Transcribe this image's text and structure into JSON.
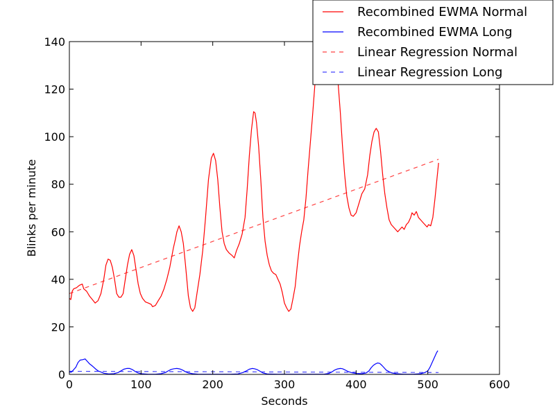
{
  "chart_data": {
    "type": "line",
    "title": "",
    "xlabel": "Seconds",
    "ylabel": "Blinks per minute",
    "xlim": [
      0,
      600
    ],
    "ylim": [
      0,
      140
    ],
    "xticks": [
      "0",
      "100",
      "200",
      "300",
      "400",
      "500",
      "600"
    ],
    "yticks": [
      "0",
      "20",
      "40",
      "60",
      "80",
      "100",
      "120",
      "140"
    ],
    "grid": false,
    "legend_position": "top-right",
    "series": [
      {
        "name": "Recombined EWMA Normal",
        "color": "#ff0000",
        "style": "solid",
        "points": [
          [
            0,
            32
          ],
          [
            2,
            31.5
          ],
          [
            4,
            35
          ],
          [
            6,
            36
          ],
          [
            10,
            36.5
          ],
          [
            14,
            37.5
          ],
          [
            18,
            38
          ],
          [
            20,
            36
          ],
          [
            24,
            35
          ],
          [
            28,
            33
          ],
          [
            32,
            31.5
          ],
          [
            36,
            30
          ],
          [
            40,
            31
          ],
          [
            44,
            34
          ],
          [
            48,
            40
          ],
          [
            51,
            46
          ],
          [
            54,
            48.5
          ],
          [
            57,
            48
          ],
          [
            60,
            45
          ],
          [
            63,
            40
          ],
          [
            66,
            34
          ],
          [
            69,
            32.5
          ],
          [
            72,
            32.5
          ],
          [
            75,
            34
          ],
          [
            78,
            40
          ],
          [
            81,
            46
          ],
          [
            84,
            50.5
          ],
          [
            87,
            52.5
          ],
          [
            90,
            50
          ],
          [
            93,
            44
          ],
          [
            96,
            38
          ],
          [
            99,
            34
          ],
          [
            102,
            32
          ],
          [
            106,
            30.5
          ],
          [
            110,
            30
          ],
          [
            114,
            29.5
          ],
          [
            116,
            28.5
          ],
          [
            120,
            29
          ],
          [
            124,
            31
          ],
          [
            128,
            33
          ],
          [
            132,
            36
          ],
          [
            136,
            40
          ],
          [
            140,
            45
          ],
          [
            145,
            53
          ],
          [
            148,
            57
          ],
          [
            150,
            60
          ],
          [
            153,
            62.5
          ],
          [
            156,
            60
          ],
          [
            159,
            55
          ],
          [
            162,
            46
          ],
          [
            166,
            33
          ],
          [
            169,
            28
          ],
          [
            172,
            26.5
          ],
          [
            175,
            28
          ],
          [
            178,
            34
          ],
          [
            182,
            42
          ],
          [
            186,
            52
          ],
          [
            190,
            66
          ],
          [
            194,
            82
          ],
          [
            198,
            91
          ],
          [
            201,
            93
          ],
          [
            204,
            90
          ],
          [
            207,
            82
          ],
          [
            210,
            70
          ],
          [
            213,
            60
          ],
          [
            216,
            55
          ],
          [
            219,
            52.5
          ],
          [
            223,
            51
          ],
          [
            227,
            50
          ],
          [
            230,
            49
          ],
          [
            233,
            52
          ],
          [
            237,
            55
          ],
          [
            241,
            59
          ],
          [
            245,
            66
          ],
          [
            248,
            78
          ],
          [
            251,
            92
          ],
          [
            254,
            103
          ],
          [
            257,
            110.5
          ],
          [
            259,
            110
          ],
          [
            261,
            106
          ],
          [
            264,
            96
          ],
          [
            267,
            82
          ],
          [
            270,
            66
          ],
          [
            273,
            56
          ],
          [
            276,
            50
          ],
          [
            279,
            46
          ],
          [
            282,
            43.5
          ],
          [
            285,
            42.5
          ],
          [
            288,
            42
          ],
          [
            291,
            40
          ],
          [
            294,
            38
          ],
          [
            297,
            34.5
          ],
          [
            300,
            30
          ],
          [
            303,
            28
          ],
          [
            306,
            26.5
          ],
          [
            309,
            27.5
          ],
          [
            312,
            32
          ],
          [
            315,
            37
          ],
          [
            318,
            46
          ],
          [
            321,
            54
          ],
          [
            324,
            60
          ],
          [
            327,
            65
          ],
          [
            330,
            74
          ],
          [
            333,
            86
          ],
          [
            336,
            97
          ],
          [
            339,
            108
          ],
          [
            342,
            120
          ],
          [
            345,
            132
          ],
          [
            348,
            140
          ],
          [
            352,
            145
          ],
          [
            356,
            146
          ],
          [
            360,
            144
          ],
          [
            364,
            140
          ],
          [
            368,
            134
          ],
          [
            372,
            128
          ],
          [
            375,
            122
          ],
          [
            378,
            110
          ],
          [
            381,
            96
          ],
          [
            384,
            84
          ],
          [
            387,
            75
          ],
          [
            390,
            70
          ],
          [
            393,
            67
          ],
          [
            396,
            66.5
          ],
          [
            400,
            68
          ],
          [
            404,
            72
          ],
          [
            408,
            76
          ],
          [
            412,
            78
          ],
          [
            416,
            84
          ],
          [
            419,
            92
          ],
          [
            422,
            98
          ],
          [
            425,
            102
          ],
          [
            428,
            103.5
          ],
          [
            431,
            102
          ],
          [
            434,
            94
          ],
          [
            437,
            84
          ],
          [
            440,
            76
          ],
          [
            443,
            70
          ],
          [
            446,
            65
          ],
          [
            449,
            63
          ],
          [
            452,
            62
          ],
          [
            455,
            61
          ],
          [
            458,
            60
          ],
          [
            461,
            61
          ],
          [
            464,
            62
          ],
          [
            467,
            61
          ],
          [
            470,
            63
          ],
          [
            473,
            64
          ],
          [
            476,
            66
          ],
          [
            478,
            68
          ],
          [
            481,
            67
          ],
          [
            484,
            68.5
          ],
          [
            487,
            66
          ],
          [
            490,
            65
          ],
          [
            493,
            64
          ],
          [
            496,
            63
          ],
          [
            499,
            62
          ],
          [
            501,
            63
          ],
          [
            504,
            62.5
          ],
          [
            507,
            66
          ],
          [
            510,
            74
          ],
          [
            513,
            83
          ],
          [
            515,
            89
          ]
        ]
      },
      {
        "name": "Recombined EWMA Long",
        "color": "#0000ff",
        "style": "solid",
        "points": [
          [
            0,
            1
          ],
          [
            3,
            1
          ],
          [
            6,
            2
          ],
          [
            9,
            3
          ],
          [
            12,
            5
          ],
          [
            15,
            6
          ],
          [
            19,
            6.2
          ],
          [
            22,
            6.5
          ],
          [
            25,
            5.5
          ],
          [
            28,
            4.5
          ],
          [
            31,
            3.8
          ],
          [
            34,
            3
          ],
          [
            37,
            2.2
          ],
          [
            40,
            1.5
          ],
          [
            44,
            1
          ],
          [
            48,
            0.5
          ],
          [
            55,
            0.2
          ],
          [
            62,
            0.3
          ],
          [
            68,
            0.8
          ],
          [
            72,
            1.5
          ],
          [
            76,
            2.2
          ],
          [
            80,
            2.5
          ],
          [
            84,
            2.5
          ],
          [
            88,
            2
          ],
          [
            92,
            1.2
          ],
          [
            96,
            0.6
          ],
          [
            100,
            0.3
          ],
          [
            110,
            0.1
          ],
          [
            120,
            0.1
          ],
          [
            128,
            0.3
          ],
          [
            134,
            0.8
          ],
          [
            138,
            1.5
          ],
          [
            142,
            2.1
          ],
          [
            146,
            2.4
          ],
          [
            150,
            2.5
          ],
          [
            154,
            2.3
          ],
          [
            158,
            1.8
          ],
          [
            162,
            1.1
          ],
          [
            166,
            0.6
          ],
          [
            172,
            0.3
          ],
          [
            180,
            0.1
          ],
          [
            200,
            0.1
          ],
          [
            225,
            0.1
          ],
          [
            235,
            0.2
          ],
          [
            242,
            0.8
          ],
          [
            247,
            1.5
          ],
          [
            251,
            2.2
          ],
          [
            255,
            2.5
          ],
          [
            258,
            2.4
          ],
          [
            262,
            2
          ],
          [
            266,
            1.3
          ],
          [
            270,
            0.6
          ],
          [
            276,
            0.2
          ],
          [
            290,
            0.1
          ],
          [
            330,
            0.1
          ],
          [
            355,
            0.1
          ],
          [
            362,
            0.4
          ],
          [
            366,
            1
          ],
          [
            370,
            1.8
          ],
          [
            374,
            2.3
          ],
          [
            378,
            2.5
          ],
          [
            381,
            2.4
          ],
          [
            385,
            1.8
          ],
          [
            389,
            1.2
          ],
          [
            394,
            0.7
          ],
          [
            400,
            0.4
          ],
          [
            408,
            0.3
          ],
          [
            414,
            0.6
          ],
          [
            418,
            1.5
          ],
          [
            421,
            2.8
          ],
          [
            424,
            3.8
          ],
          [
            427,
            4.4
          ],
          [
            430,
            4.8
          ],
          [
            433,
            4.6
          ],
          [
            436,
            3.8
          ],
          [
            439,
            2.8
          ],
          [
            442,
            1.8
          ],
          [
            446,
            1.1
          ],
          [
            450,
            0.6
          ],
          [
            456,
            0.3
          ],
          [
            466,
            0.1
          ],
          [
            480,
            0.1
          ],
          [
            490,
            0.3
          ],
          [
            496,
            0.8
          ],
          [
            500,
            1.5
          ],
          [
            503,
            3
          ],
          [
            506,
            5
          ],
          [
            509,
            7
          ],
          [
            512,
            9
          ],
          [
            514,
            10
          ]
        ]
      },
      {
        "name": "Linear Regression Normal",
        "color": "#ff0000",
        "style": "dashed",
        "points": [
          [
            0,
            34
          ],
          [
            515,
            90.5
          ]
        ]
      },
      {
        "name": "Linear Regression Long",
        "color": "#0000ff",
        "style": "dashed",
        "points": [
          [
            0,
            1.3
          ],
          [
            515,
            0.8
          ]
        ]
      }
    ]
  }
}
